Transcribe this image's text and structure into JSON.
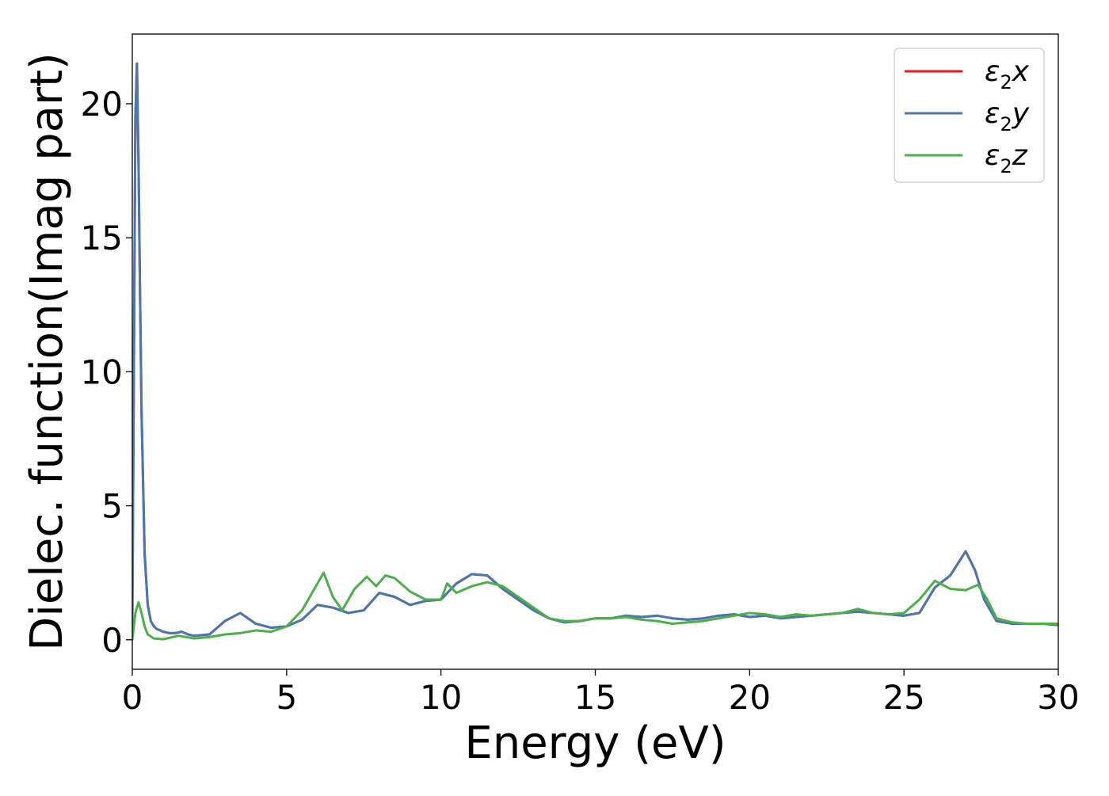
{
  "chart_data": {
    "type": "line",
    "xlabel": "Energy (eV)",
    "ylabel": "Dielec. function(Imag part)",
    "xlim": [
      0,
      30
    ],
    "ylim": [
      -1.1,
      22.6
    ],
    "xticks": [
      0,
      5,
      10,
      15,
      20,
      25,
      30
    ],
    "xtick_labels": [
      "0",
      "5",
      "10",
      "15",
      "20",
      "25",
      "30"
    ],
    "yticks": [
      0,
      5,
      10,
      15,
      20
    ],
    "ytick_labels": [
      "0",
      "5",
      "10",
      "15",
      "20"
    ],
    "grid": false,
    "legend_position": "top-right",
    "series": [
      {
        "name": "ε2x",
        "legend_base": "ε",
        "legend_sub": "2",
        "legend_suffix": "x",
        "color": "#e41a1c",
        "x": [
          0,
          0.05,
          0.1,
          0.15,
          0.2,
          0.25,
          0.3,
          0.4,
          0.5,
          0.6,
          0.7,
          0.8,
          0.9,
          1.0,
          1.2,
          1.4,
          1.6,
          1.8,
          2.0,
          2.5,
          3.0,
          3.5,
          4.0,
          4.5,
          5.0,
          5.5,
          6.0,
          6.5,
          7.0,
          7.5,
          8.0,
          8.5,
          9.0,
          9.5,
          10.0,
          10.5,
          11.0,
          11.5,
          12.0,
          12.5,
          13.0,
          13.5,
          14.0,
          14.5,
          15.0,
          15.5,
          16.0,
          16.5,
          17.0,
          17.5,
          18.0,
          18.5,
          19.0,
          19.5,
          20.0,
          20.5,
          21.0,
          21.5,
          22.0,
          22.5,
          23.0,
          23.5,
          24.0,
          24.5,
          25.0,
          25.5,
          26.0,
          26.5,
          27.0,
          27.3,
          27.6,
          28.0,
          28.5,
          29.0,
          29.5,
          30.0
        ],
        "y": [
          0.5,
          10.0,
          19.5,
          21.5,
          18.0,
          13.0,
          8.5,
          3.2,
          1.3,
          0.7,
          0.5,
          0.4,
          0.35,
          0.3,
          0.25,
          0.25,
          0.3,
          0.2,
          0.15,
          0.2,
          0.7,
          1.0,
          0.6,
          0.45,
          0.5,
          0.75,
          1.3,
          1.2,
          1.0,
          1.1,
          1.75,
          1.6,
          1.3,
          1.45,
          1.5,
          2.1,
          2.45,
          2.4,
          1.9,
          1.5,
          1.1,
          0.8,
          0.65,
          0.7,
          0.8,
          0.8,
          0.9,
          0.85,
          0.9,
          0.8,
          0.75,
          0.8,
          0.9,
          0.95,
          0.85,
          0.9,
          0.8,
          0.85,
          0.9,
          0.95,
          1.0,
          1.05,
          1.0,
          0.95,
          0.9,
          1.0,
          1.95,
          2.4,
          3.3,
          2.6,
          1.5,
          0.7,
          0.6,
          0.6,
          0.6,
          0.55
        ]
      },
      {
        "name": "ε2y",
        "legend_base": "ε",
        "legend_sub": "2",
        "legend_suffix": "y",
        "color": "#4878b0",
        "x": [
          0,
          0.05,
          0.1,
          0.15,
          0.2,
          0.25,
          0.3,
          0.4,
          0.5,
          0.6,
          0.7,
          0.8,
          0.9,
          1.0,
          1.2,
          1.4,
          1.6,
          1.8,
          2.0,
          2.5,
          3.0,
          3.5,
          4.0,
          4.5,
          5.0,
          5.5,
          6.0,
          6.5,
          7.0,
          7.5,
          8.0,
          8.5,
          9.0,
          9.5,
          10.0,
          10.5,
          11.0,
          11.5,
          12.0,
          12.5,
          13.0,
          13.5,
          14.0,
          14.5,
          15.0,
          15.5,
          16.0,
          16.5,
          17.0,
          17.5,
          18.0,
          18.5,
          19.0,
          19.5,
          20.0,
          20.5,
          21.0,
          21.5,
          22.0,
          22.5,
          23.0,
          23.5,
          24.0,
          24.5,
          25.0,
          25.5,
          26.0,
          26.5,
          27.0,
          27.3,
          27.6,
          28.0,
          28.5,
          29.0,
          29.5,
          30.0
        ],
        "y": [
          0.5,
          10.0,
          19.5,
          21.5,
          18.0,
          13.0,
          8.5,
          3.2,
          1.3,
          0.7,
          0.5,
          0.4,
          0.35,
          0.3,
          0.25,
          0.25,
          0.3,
          0.2,
          0.15,
          0.2,
          0.7,
          1.0,
          0.6,
          0.45,
          0.5,
          0.75,
          1.3,
          1.2,
          1.0,
          1.1,
          1.75,
          1.6,
          1.3,
          1.45,
          1.5,
          2.1,
          2.45,
          2.4,
          1.9,
          1.5,
          1.1,
          0.8,
          0.65,
          0.7,
          0.8,
          0.8,
          0.9,
          0.85,
          0.9,
          0.8,
          0.75,
          0.8,
          0.9,
          0.95,
          0.85,
          0.9,
          0.8,
          0.85,
          0.9,
          0.95,
          1.0,
          1.05,
          1.0,
          0.95,
          0.9,
          1.0,
          1.95,
          2.4,
          3.3,
          2.6,
          1.5,
          0.7,
          0.6,
          0.6,
          0.6,
          0.55
        ]
      },
      {
        "name": "ε2z",
        "legend_base": "ε",
        "legend_sub": "2",
        "legend_suffix": "z",
        "color": "#4daf4a",
        "x": [
          0,
          0.1,
          0.2,
          0.3,
          0.4,
          0.5,
          0.7,
          1.0,
          1.5,
          2.0,
          2.5,
          3.0,
          3.5,
          4.0,
          4.5,
          5.0,
          5.5,
          5.9,
          6.2,
          6.5,
          6.8,
          7.2,
          7.6,
          7.9,
          8.2,
          8.5,
          9.0,
          9.5,
          10.0,
          10.2,
          10.5,
          11.0,
          11.5,
          12.0,
          12.5,
          13.0,
          13.5,
          14.0,
          14.5,
          15.0,
          15.5,
          16.0,
          16.5,
          17.0,
          17.5,
          18.0,
          18.5,
          19.0,
          19.5,
          20.0,
          20.5,
          21.0,
          21.5,
          22.0,
          22.5,
          23.0,
          23.5,
          24.0,
          24.5,
          25.0,
          25.5,
          26.0,
          26.5,
          27.0,
          27.4,
          27.7,
          28.0,
          28.5,
          29.0,
          29.5,
          30.0
        ],
        "y": [
          0.0,
          1.0,
          1.4,
          1.0,
          0.5,
          0.2,
          0.05,
          0.02,
          0.15,
          0.05,
          0.1,
          0.2,
          0.25,
          0.35,
          0.3,
          0.5,
          1.1,
          1.9,
          2.5,
          1.6,
          1.1,
          1.9,
          2.35,
          2.0,
          2.4,
          2.3,
          1.8,
          1.5,
          1.5,
          2.1,
          1.75,
          2.0,
          2.15,
          2.0,
          1.6,
          1.2,
          0.8,
          0.7,
          0.7,
          0.8,
          0.8,
          0.85,
          0.75,
          0.7,
          0.6,
          0.65,
          0.7,
          0.8,
          0.9,
          1.0,
          0.95,
          0.85,
          0.95,
          0.9,
          0.95,
          1.0,
          1.15,
          1.0,
          0.95,
          1.0,
          1.5,
          2.2,
          1.9,
          1.85,
          2.05,
          1.5,
          0.8,
          0.65,
          0.6,
          0.6,
          0.6
        ]
      }
    ]
  }
}
